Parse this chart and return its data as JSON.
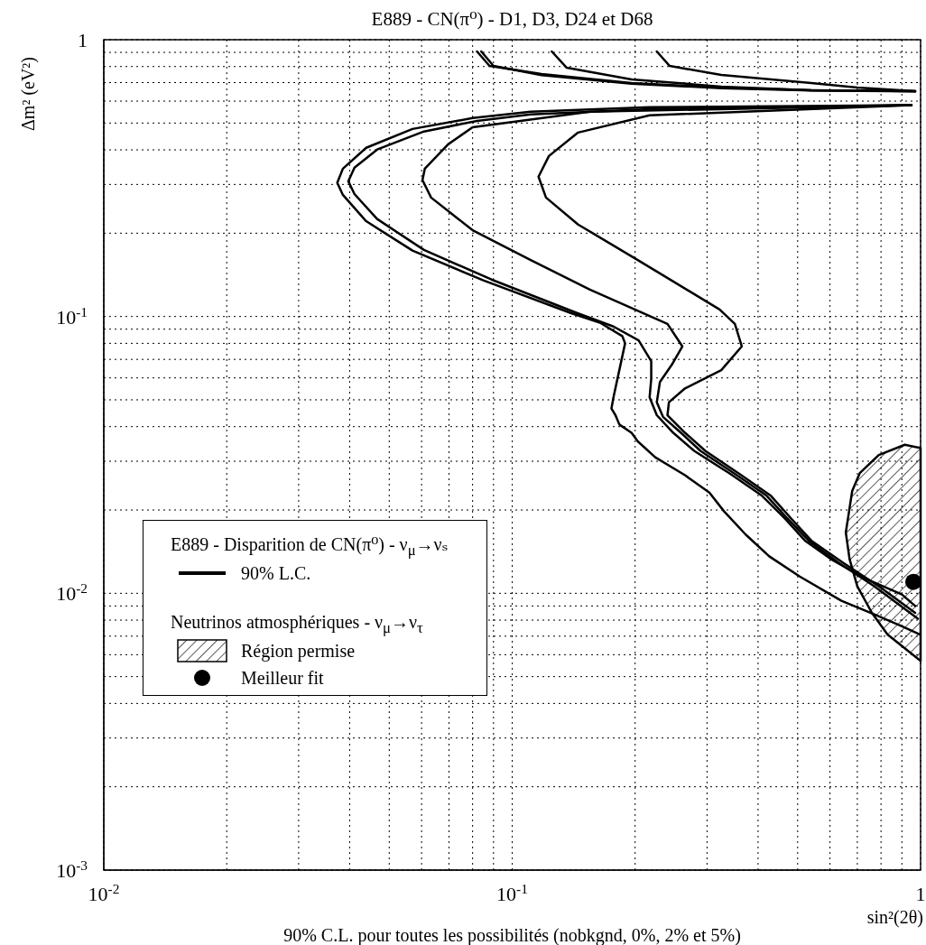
{
  "chart_data": {
    "type": "line",
    "title": "E889 - CN(π⁰) - D1, D3, D24 et D68",
    "xlabel": "sin²(2θ)",
    "ylabel": "Δm² (eV²)",
    "legend_title": "E889 - Disparition de CN(π⁰) - ν$_{μ}$→νₛ",
    "annotations": [
      "Neutrinos atmosphériques - ν$_{μ}$→ν$_{τ}$",
      "90% C.L. pour toutes les possibilités (nobkgnd, 0%, 2% et 5%)"
    ],
    "log": "xy",
    "grid": true,
    "legend": "bottom left",
    "xlim": [
      0.01,
      1
    ],
    "ylim": [
      0.001,
      1
    ],
    "xticks": [
      {
        "value": 0.01,
        "label": "10$^{-2}$"
      },
      {
        "value": 0.02,
        "label": null
      },
      {
        "value": 0.03,
        "label": null
      },
      {
        "value": 0.04,
        "label": null
      },
      {
        "value": 0.05,
        "label": null
      },
      {
        "value": 0.06,
        "label": null
      },
      {
        "value": 0.07,
        "label": null
      },
      {
        "value": 0.08,
        "label": null
      },
      {
        "value": 0.09,
        "label": null
      },
      {
        "value": 0.1,
        "label": "10$^{-1}$"
      },
      {
        "value": 0.2,
        "label": null
      },
      {
        "value": 0.3,
        "label": null
      },
      {
        "value": 0.4,
        "label": null
      },
      {
        "value": 0.5,
        "label": null
      },
      {
        "value": 0.6,
        "label": null
      },
      {
        "value": 0.7,
        "label": null
      },
      {
        "value": 0.8,
        "label": null
      },
      {
        "value": 0.9,
        "label": null
      },
      1
    ],
    "yticks": [
      {
        "value": 0.001,
        "label": "10$^{-3}$"
      },
      {
        "value": 0.002,
        "label": null
      },
      {
        "value": 0.003,
        "label": null
      },
      {
        "value": 0.004,
        "label": null
      },
      {
        "value": 0.005,
        "label": null
      },
      {
        "value": 0.006,
        "label": null
      },
      {
        "value": 0.007,
        "label": null
      },
      {
        "value": 0.008,
        "label": null
      },
      {
        "value": 0.009,
        "label": null
      },
      {
        "value": 0.01,
        "label": "10$^{-2}$"
      },
      {
        "value": 0.02,
        "label": null
      },
      {
        "value": 0.03,
        "label": null
      },
      {
        "value": 0.04,
        "label": null
      },
      {
        "value": 0.05,
        "label": null
      },
      {
        "value": 0.06,
        "label": null
      },
      {
        "value": 0.07,
        "label": null
      },
      {
        "value": 0.08,
        "label": null
      },
      {
        "value": 0.09,
        "label": null
      },
      {
        "value": 0.1,
        "label": "10$^{-1}$"
      },
      {
        "value": 0.2,
        "label": null
      },
      {
        "value": 0.3,
        "label": null
      },
      {
        "value": 0.4,
        "label": null
      },
      {
        "value": 0.5,
        "label": null
      },
      {
        "value": 0.6,
        "label": null
      },
      {
        "value": 0.7,
        "label": null
      },
      {
        "value": 0.8,
        "label": null
      },
      {
        "value": 0.9,
        "label": null
      },
      1
    ],
    "series": [
      {
        "name": "90% L.C.",
        "color": "#000000",
        "x": [
          0.082,
          0.088,
          0.118,
          0.196,
          0.325,
          0.54,
          0.97
        ],
        "values": [
          0.907,
          0.804,
          0.752,
          0.698,
          0.672,
          0.657,
          0.652
        ]
      },
      {
        "color": "#000000",
        "x": [
          0.95,
          0.217,
          0.111,
          0.08,
          0.057,
          0.0439,
          0.0385,
          0.0373,
          0.0385,
          0.0439,
          0.057,
          0.085,
          0.139,
          0.164,
          0.186,
          0.189,
          0.177,
          0.175,
          0.179,
          0.183,
          0.196,
          0.203,
          0.224,
          0.265,
          0.304,
          0.33,
          0.373,
          0.426,
          0.506,
          0.64,
          0.77,
          0.9,
          0.995
        ],
        "values": [
          0.58,
          0.57,
          0.549,
          0.521,
          0.476,
          0.407,
          0.342,
          0.304,
          0.275,
          0.221,
          0.173,
          0.135,
          0.103,
          0.095,
          0.085,
          0.08,
          0.051,
          0.0465,
          0.044,
          0.0407,
          0.038,
          0.0354,
          0.031,
          0.0267,
          0.0231,
          0.0198,
          0.0163,
          0.0136,
          0.0115,
          0.0094,
          0.0084,
          0.0076,
          0.0071
        ]
      },
      {
        "color": "#000000",
        "x": [
          0.084,
          0.09,
          0.118,
          0.196,
          0.325,
          0.54,
          0.97
        ],
        "values": [
          0.907,
          0.804,
          0.745,
          0.694,
          0.668,
          0.655,
          0.65
        ]
      },
      {
        "color": "#000000",
        "x": [
          0.95,
          0.217,
          0.111,
          0.082,
          0.0608,
          0.0467,
          0.0411,
          0.0397,
          0.0411,
          0.0467,
          0.0608,
          0.089,
          0.144,
          0.177,
          0.204,
          0.219,
          0.219,
          0.217,
          0.226,
          0.248,
          0.279,
          0.342,
          0.409,
          0.464,
          0.521,
          0.608,
          0.733,
          0.9,
          0.97
        ],
        "values": [
          0.58,
          0.561,
          0.537,
          0.509,
          0.466,
          0.401,
          0.345,
          0.308,
          0.277,
          0.225,
          0.174,
          0.136,
          0.103,
          0.092,
          0.082,
          0.069,
          0.0595,
          0.051,
          0.044,
          0.038,
          0.0327,
          0.027,
          0.0225,
          0.0187,
          0.0155,
          0.0132,
          0.0113,
          0.0099,
          0.009
        ]
      },
      {
        "color": "#000000",
        "x": [
          0.125,
          0.136,
          0.196,
          0.325,
          0.54,
          0.97
        ],
        "values": [
          0.907,
          0.792,
          0.719,
          0.677,
          0.657,
          0.652
        ]
      },
      {
        "color": "#000000",
        "x": [
          0.95,
          0.155,
          0.08,
          0.0697,
          0.0611,
          0.0603,
          0.0633,
          0.08,
          0.111,
          0.155,
          0.24,
          0.261,
          0.246,
          0.23,
          0.226,
          0.234,
          0.259,
          0.289,
          0.351,
          0.42,
          0.471,
          0.532,
          0.63,
          0.77,
          0.985
        ],
        "values": [
          0.58,
          0.549,
          0.483,
          0.419,
          0.342,
          0.311,
          0.269,
          0.205,
          0.16,
          0.125,
          0.094,
          0.078,
          0.067,
          0.058,
          0.049,
          0.0434,
          0.038,
          0.0327,
          0.027,
          0.0225,
          0.0187,
          0.0155,
          0.0129,
          0.0106,
          0.0081
        ]
      },
      {
        "color": "#000000",
        "x": [
          0.226,
          0.243,
          0.325,
          0.54,
          0.7,
          0.97
        ],
        "values": [
          0.907,
          0.804,
          0.746,
          0.698,
          0.672,
          0.652
        ]
      },
      {
        "color": "#000000",
        "x": [
          0.95,
          0.217,
          0.145,
          0.123,
          0.116,
          0.121,
          0.145,
          0.203,
          0.322,
          0.351,
          0.365,
          0.325,
          0.265,
          0.242,
          0.24,
          0.265,
          0.297,
          0.36,
          0.43,
          0.481,
          0.54,
          0.646,
          0.79,
          0.97
        ],
        "values": [
          0.58,
          0.533,
          0.462,
          0.38,
          0.32,
          0.269,
          0.215,
          0.16,
          0.106,
          0.094,
          0.078,
          0.064,
          0.055,
          0.049,
          0.044,
          0.038,
          0.0327,
          0.027,
          0.0225,
          0.0187,
          0.0155,
          0.0129,
          0.0106,
          0.0085
        ]
      },
      {
        "type": "area",
        "name": "Région permise",
        "color": "#000000",
        "x": [
          1.0,
          0.915,
          0.79,
          0.71,
          0.68,
          0.656,
          0.67,
          0.7,
          0.76,
          0.83,
          1.0
        ],
        "values": [
          0.0335,
          0.0344,
          0.0316,
          0.0272,
          0.0234,
          0.0166,
          0.0133,
          0.0106,
          0.0085,
          0.0071,
          0.0057
        ]
      },
      {
        "type": "scatter",
        "name": "Meilleur fit",
        "color": "#000000",
        "marker": "circle",
        "x": [
          0.96
        ],
        "values": [
          0.011
        ]
      }
    ]
  }
}
